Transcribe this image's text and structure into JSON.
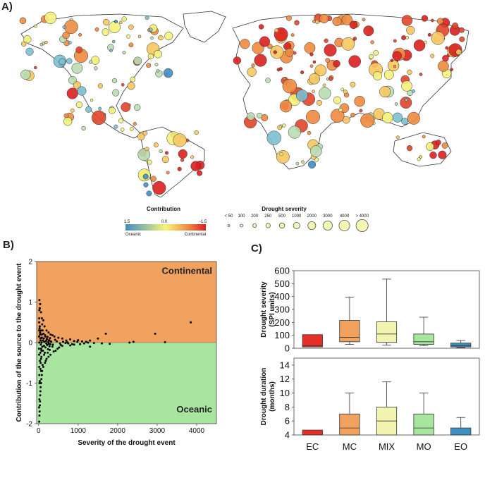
{
  "panels": {
    "a": "A)",
    "b": "B)",
    "c": "C)"
  },
  "legend": {
    "contribution_title": "Contribution",
    "contribution_ticks": [
      "1.5",
      "0.0",
      "-1.5"
    ],
    "contribution_ends": [
      "Oceanic",
      "Continental"
    ],
    "severity_title": "Drought severity",
    "severity_labels": [
      "< 50",
      "100",
      "200",
      "250",
      "500",
      "1000",
      "2000",
      "3000",
      "4000",
      "> 4000"
    ]
  },
  "chart_data": [
    {
      "type": "scatter",
      "id": "B",
      "xlabel": "Severity of the drought event",
      "ylabel": "Contribution of the source to the drought event",
      "xlim": [
        -50,
        4500
      ],
      "ylim": [
        -2,
        2
      ],
      "xticks": [
        0,
        1000,
        2000,
        3000,
        4000
      ],
      "yticks": [
        -2,
        -1,
        0,
        1,
        2
      ],
      "regions": [
        {
          "name": "Continental",
          "range": [
            0,
            2
          ],
          "color": "#F0A25E"
        },
        {
          "name": "Oceanic",
          "range": [
            -2,
            0
          ],
          "color": "#A8E6A0"
        }
      ],
      "points": [
        [
          20,
          1.05
        ],
        [
          40,
          0.95
        ],
        [
          30,
          0.85
        ],
        [
          60,
          0.75
        ],
        [
          80,
          0.6
        ],
        [
          120,
          0.55
        ],
        [
          90,
          0.45
        ],
        [
          150,
          0.4
        ],
        [
          200,
          0.3
        ],
        [
          250,
          0.25
        ],
        [
          300,
          0.2
        ],
        [
          350,
          0.18
        ],
        [
          400,
          0.15
        ],
        [
          500,
          0.12
        ],
        [
          600,
          0.1
        ],
        [
          700,
          0.05
        ],
        [
          800,
          0.08
        ],
        [
          900,
          0.04
        ],
        [
          1000,
          0.06
        ],
        [
          1100,
          0.03
        ],
        [
          1200,
          0.02
        ],
        [
          1300,
          0.05
        ],
        [
          1500,
          0.1
        ],
        [
          1700,
          0.22
        ],
        [
          2400,
          0.02
        ],
        [
          2950,
          0.22
        ],
        [
          3850,
          0.5
        ],
        [
          3200,
          0.01
        ],
        [
          2300,
          0.0
        ],
        [
          1600,
          -0.02
        ],
        [
          1400,
          -0.01
        ],
        [
          1800,
          -0.03
        ],
        [
          1300,
          -0.1
        ],
        [
          1250,
          0.0
        ],
        [
          900,
          -0.05
        ],
        [
          850,
          -0.04
        ],
        [
          600,
          -0.08
        ],
        [
          750,
          -0.02
        ],
        [
          560,
          -0.06
        ],
        [
          520,
          -0.12
        ],
        [
          480,
          -0.15
        ],
        [
          430,
          -0.2
        ],
        [
          380,
          -0.22
        ],
        [
          350,
          -0.1
        ],
        [
          300,
          -0.3
        ],
        [
          280,
          -0.18
        ],
        [
          250,
          -0.35
        ],
        [
          230,
          -0.25
        ],
        [
          200,
          -0.4
        ],
        [
          180,
          -0.45
        ],
        [
          160,
          -0.5
        ],
        [
          140,
          -0.3
        ],
        [
          120,
          -0.6
        ],
        [
          100,
          -0.55
        ],
        [
          90,
          -0.7
        ],
        [
          80,
          -0.8
        ],
        [
          70,
          -0.9
        ],
        [
          60,
          -1.0
        ],
        [
          50,
          -1.1
        ],
        [
          45,
          -1.2
        ],
        [
          40,
          -1.3
        ],
        [
          35,
          -1.45
        ],
        [
          30,
          -1.55
        ],
        [
          25,
          -1.7
        ],
        [
          20,
          -1.8
        ],
        [
          15,
          -1.95
        ],
        [
          10,
          -1.6
        ],
        [
          20,
          -1.4
        ],
        [
          30,
          -0.95
        ],
        [
          45,
          -0.65
        ],
        [
          60,
          -0.4
        ],
        [
          70,
          -0.2
        ],
        [
          80,
          0.2
        ],
        [
          100,
          0.3
        ],
        [
          130,
          0.1
        ],
        [
          170,
          0.15
        ],
        [
          210,
          0.08
        ],
        [
          260,
          0.05
        ],
        [
          320,
          0.02
        ],
        [
          360,
          -0.05
        ],
        [
          420,
          0.07
        ],
        [
          460,
          0.03
        ],
        [
          540,
          -0.02
        ],
        [
          620,
          0.02
        ],
        [
          680,
          -0.01
        ],
        [
          720,
          0.01
        ],
        [
          1050,
          -0.04
        ],
        [
          980,
          0.02
        ],
        [
          1150,
          -0.02
        ],
        [
          800,
          -0.07
        ],
        [
          15,
          0.5
        ],
        [
          25,
          0.35
        ],
        [
          35,
          0.2
        ],
        [
          45,
          0.1
        ],
        [
          55,
          -0.05
        ],
        [
          65,
          -0.15
        ],
        [
          75,
          0.0
        ],
        [
          85,
          0.12
        ],
        [
          95,
          -0.1
        ],
        [
          105,
          0.05
        ],
        [
          110,
          -0.2
        ],
        [
          125,
          0.22
        ],
        [
          135,
          -0.08
        ],
        [
          145,
          0.02
        ],
        [
          155,
          -0.25
        ],
        [
          165,
          0.18
        ],
        [
          175,
          -0.12
        ],
        [
          185,
          0.04
        ],
        [
          195,
          -0.02
        ],
        [
          205,
          0.09
        ],
        [
          215,
          -0.06
        ],
        [
          225,
          0.14
        ],
        [
          235,
          -0.16
        ],
        [
          245,
          0.01
        ],
        [
          255,
          -0.03
        ],
        [
          265,
          0.06
        ],
        [
          275,
          -0.09
        ],
        [
          285,
          0.11
        ],
        [
          295,
          -0.04
        ],
        [
          305,
          0.03
        ],
        [
          10,
          0.15
        ],
        [
          10,
          -0.15
        ],
        [
          12,
          0.3
        ],
        [
          12,
          -0.3
        ],
        [
          14,
          0.6
        ],
        [
          14,
          -0.6
        ],
        [
          16,
          0.0
        ],
        [
          18,
          0.8
        ],
        [
          18,
          -0.8
        ],
        [
          22,
          -1.0
        ],
        [
          28,
          0.4
        ],
        [
          32,
          -0.45
        ],
        [
          38,
          0.25
        ],
        [
          42,
          -0.25
        ],
        [
          48,
          0.05
        ],
        [
          52,
          -0.5
        ],
        [
          58,
          0.3
        ],
        [
          62,
          -0.7
        ],
        [
          68,
          0.12
        ],
        [
          72,
          -0.35
        ]
      ]
    },
    {
      "type": "box",
      "id": "C-top",
      "ylabel": "Drought severity\n(SPI units)",
      "ylim": [
        0,
        600
      ],
      "yticks": [
        0,
        100,
        200,
        300,
        400,
        500,
        600
      ],
      "categories": [
        "EC",
        "MC",
        "MIX",
        "MO",
        "EO"
      ],
      "colors": [
        "#E5302A",
        "#F0A25E",
        "#F2F4B0",
        "#A8E6A0",
        "#3F8FC2"
      ],
      "boxes": [
        {
          "q1": 10,
          "median": 20,
          "q3": 105
        },
        {
          "min": 30,
          "q1": 50,
          "median": 85,
          "q3": 215,
          "max": 395
        },
        {
          "min": 25,
          "q1": 45,
          "median": 110,
          "q3": 205,
          "max": 535
        },
        {
          "min": 20,
          "q1": 30,
          "median": 50,
          "q3": 110,
          "max": 240
        },
        {
          "min": 5,
          "q1": 10,
          "median": 20,
          "q3": 40,
          "max": 60
        }
      ]
    },
    {
      "type": "box",
      "id": "C-bottom",
      "ylabel": "Drought duration\n(months)",
      "ylim": [
        4,
        15
      ],
      "yticks": [
        4,
        6,
        8,
        10,
        12,
        14
      ],
      "categories": [
        "EC",
        "MC",
        "MIX",
        "MO",
        "EO"
      ],
      "colors": [
        "#E5302A",
        "#F0A25E",
        "#F2F4B0",
        "#A8E6A0",
        "#3F8FC2"
      ],
      "boxes": [
        {
          "q1": 4,
          "median": 4,
          "q3": 4.7
        },
        {
          "min": 4,
          "q1": 4,
          "median": 5,
          "q3": 7,
          "max": 10
        },
        {
          "min": 4,
          "q1": 4,
          "median": 6,
          "q3": 8,
          "max": 11.6
        },
        {
          "min": 4,
          "q1": 4,
          "median": 5,
          "q3": 7,
          "max": 10
        },
        {
          "min": 4,
          "q1": 4,
          "median": 4,
          "q3": 5,
          "max": 6.5
        }
      ]
    }
  ]
}
